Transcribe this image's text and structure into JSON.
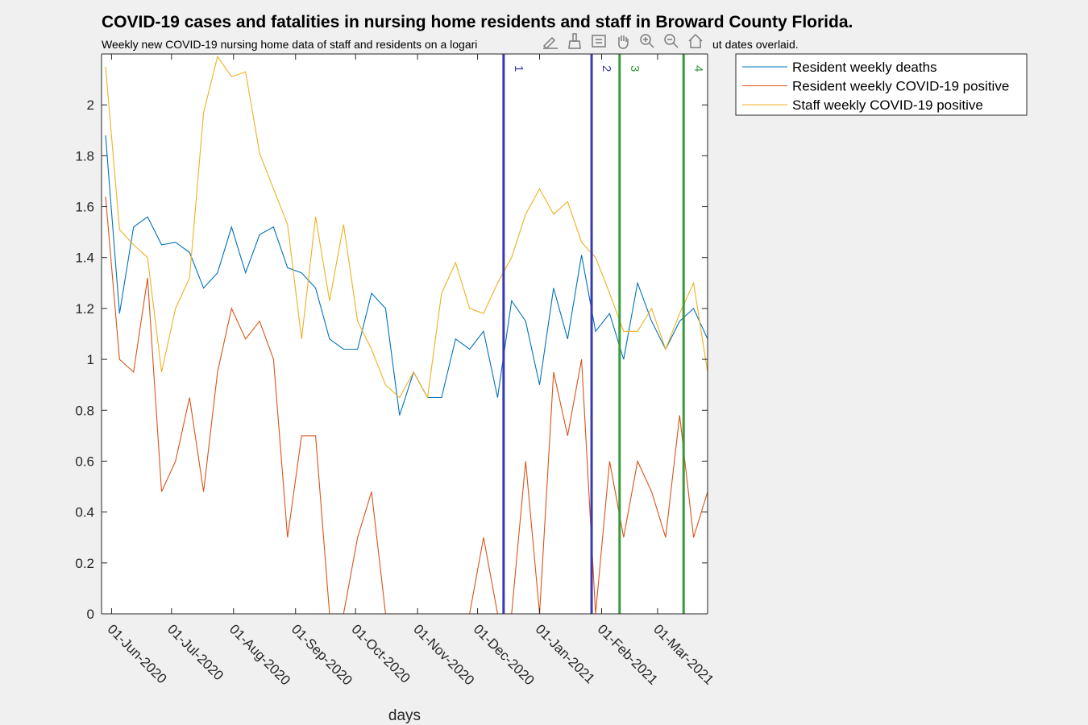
{
  "chart_data": {
    "type": "line",
    "title": "COVID-19 cases and fatalities in nursing home residents and staff in Broward County Florida.",
    "subtitle_left": "Weekly new COVID-19 nursing home data of staff and residents on a logari",
    "subtitle_right": "ut dates overlaid.",
    "xlabel": "days",
    "ylabel": "",
    "ylim": [
      0,
      2.2
    ],
    "xlim": [
      "2020-05-27",
      "2021-03-26"
    ],
    "yticks": [
      0,
      0.2,
      0.4,
      0.6,
      0.8,
      1,
      1.2,
      1.4,
      1.6,
      1.8,
      2
    ],
    "ytick_labels": [
      "0",
      "0.2",
      "0.4",
      "0.6",
      "0.8",
      "1",
      "1.2",
      "1.4",
      "1.6",
      "1.8",
      "2"
    ],
    "xticks": [
      "2020-06-01",
      "2020-07-01",
      "2020-08-01",
      "2020-09-01",
      "2020-10-01",
      "2020-11-01",
      "2020-12-01",
      "2021-01-01",
      "2021-02-01",
      "2021-03-01"
    ],
    "xtick_labels": [
      "01-Jun-2020",
      "01-Jul-2020",
      "01-Aug-2020",
      "01-Sep-2020",
      "01-Oct-2020",
      "01-Nov-2020",
      "01-Dec-2020",
      "01-Jan-2021",
      "01-Feb-2021",
      "01-Mar-2021"
    ],
    "grid": false,
    "legend_position": "outside-top-right",
    "x": [
      "2020-05-29",
      "2020-06-05",
      "2020-06-12",
      "2020-06-19",
      "2020-06-26",
      "2020-07-03",
      "2020-07-10",
      "2020-07-17",
      "2020-07-24",
      "2020-07-31",
      "2020-08-07",
      "2020-08-14",
      "2020-08-21",
      "2020-08-28",
      "2020-09-04",
      "2020-09-11",
      "2020-09-18",
      "2020-09-25",
      "2020-10-02",
      "2020-10-09",
      "2020-10-16",
      "2020-10-23",
      "2020-10-30",
      "2020-11-06",
      "2020-11-13",
      "2020-11-20",
      "2020-11-27",
      "2020-12-04",
      "2020-12-11",
      "2020-12-18",
      "2020-12-25",
      "2021-01-01",
      "2021-01-08",
      "2021-01-15",
      "2021-01-22",
      "2021-01-29",
      "2021-02-05",
      "2021-02-12",
      "2021-02-19",
      "2021-02-26",
      "2021-03-05",
      "2021-03-12",
      "2021-03-19",
      "2021-03-26"
    ],
    "series": [
      {
        "name": "Resident weekly deaths",
        "color": "#0072bd",
        "values": [
          1.88,
          1.18,
          1.52,
          1.56,
          1.45,
          1.46,
          1.42,
          1.28,
          1.34,
          1.52,
          1.34,
          1.49,
          1.52,
          1.36,
          1.34,
          1.28,
          1.08,
          1.04,
          1.04,
          1.26,
          1.2,
          0.78,
          0.95,
          0.85,
          0.85,
          1.08,
          1.04,
          1.11,
          0.85,
          1.23,
          1.15,
          0.9,
          1.28,
          1.08,
          1.41,
          1.11,
          1.18,
          1.0,
          1.3,
          1.15,
          1.04,
          1.15,
          1.2,
          1.08
        ]
      },
      {
        "name": "Resident weekly COVID-19 positive",
        "color": "#d95319",
        "values": [
          1.64,
          1.0,
          0.95,
          1.32,
          0.48,
          0.6,
          0.85,
          0.48,
          0.95,
          1.2,
          1.08,
          1.15,
          1.0,
          0.3,
          0.7,
          0.7,
          0.0,
          0.0,
          0.3,
          0.48,
          0.0,
          0.0,
          0.0,
          0.0,
          0.0,
          0.0,
          0.0,
          0.3,
          0.0,
          0.0,
          0.6,
          0.0,
          0.95,
          0.7,
          1.0,
          0.0,
          0.6,
          0.3,
          0.6,
          0.48,
          0.3,
          0.78,
          0.3,
          0.48
        ]
      },
      {
        "name": "Staff weekly COVID-19 positive",
        "color": "#edb120",
        "values": [
          2.15,
          1.51,
          1.45,
          1.4,
          0.95,
          1.2,
          1.32,
          1.97,
          2.19,
          2.11,
          2.13,
          1.81,
          1.67,
          1.53,
          1.08,
          1.56,
          1.23,
          1.53,
          1.15,
          1.04,
          0.9,
          0.85,
          0.95,
          0.85,
          1.26,
          1.38,
          1.2,
          1.18,
          1.3,
          1.4,
          1.57,
          1.67,
          1.57,
          1.62,
          1.46,
          1.4,
          1.26,
          1.11,
          1.11,
          1.2,
          1.04,
          1.18,
          1.3,
          0.95
        ]
      }
    ],
    "vertical_lines": [
      {
        "label": "1",
        "date": "2020-12-14",
        "color": "#3a3ab0"
      },
      {
        "label": "2",
        "date": "2021-01-27",
        "color": "#3a3ab0"
      },
      {
        "label": "3",
        "date": "2021-02-10",
        "color": "#3a9a3a"
      },
      {
        "label": "4",
        "date": "2021-03-14",
        "color": "#3a9a3a"
      }
    ]
  },
  "toolbar": {
    "icons": [
      "edit-icon",
      "brush-icon",
      "data-tips-icon",
      "pan-icon",
      "zoom-in-icon",
      "zoom-out-icon",
      "home-icon"
    ]
  }
}
